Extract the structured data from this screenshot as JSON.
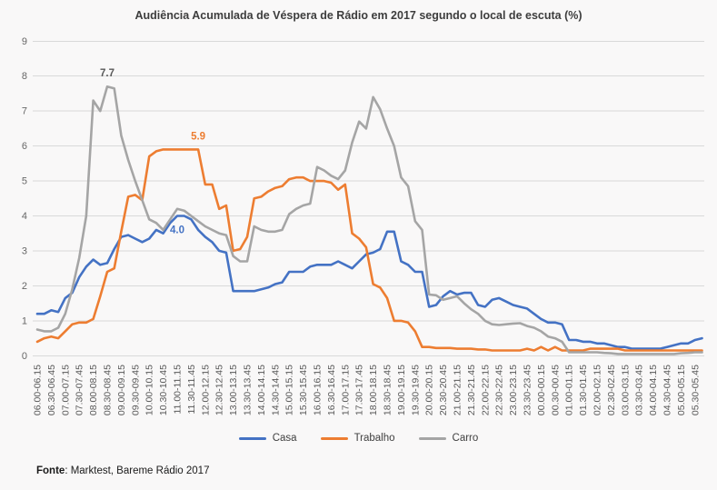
{
  "title": "Audiência Acumulada de Véspera de Rádio em 2017 segundo o local de escuta (%)",
  "chart_data": {
    "type": "line",
    "title": "Audiência Acumulada de Véspera de Rádio em 2017 segundo o local de escuta (%)",
    "ylim": [
      0,
      9
    ],
    "y_ticks": [
      0,
      1,
      2,
      3,
      4,
      5,
      6,
      7,
      8,
      9
    ],
    "grid": true,
    "legend_position": "bottom",
    "x_label_rotation": 90,
    "points_per_label": 2,
    "categories": [
      "06.00-06.15",
      "06.30-06.45",
      "07.00-07.15",
      "07.30-07.45",
      "08.00-08.15",
      "08.30-08.45",
      "09.00-09.15",
      "09.30-09.45",
      "10.00-10.15",
      "10.30-10.45",
      "11.00-11.15",
      "11.30-11.45",
      "12.00-12.15",
      "12.30-12.45",
      "13.00-13.15",
      "13.30-13.45",
      "14.00-14.15",
      "14.30-14.45",
      "15.00-15.15",
      "15.30-15.45",
      "16.00-16.15",
      "16.30-16.45",
      "17.00-17.15",
      "17.30-17.45",
      "18.00-18.15",
      "18.30-18.45",
      "19.00-19.15",
      "19.30-19.45",
      "20.00-20.15",
      "20.30-20.45",
      "21.00-21.15",
      "21.30-21.45",
      "22.00-22.15",
      "22.30-22.45",
      "23.00-23.15",
      "23.30-23.45",
      "00.00-00.15",
      "00.30-00.45",
      "01.00-01.15",
      "01.30-01.45",
      "02.00-02.15",
      "02.30-02.45",
      "03.00-03.15",
      "03.30-03.45",
      "04.00-04.15",
      "04.30-04.45",
      "05.00-05.15",
      "05.30-05.45"
    ],
    "series": [
      {
        "name": "Casa",
        "color": "#4472C4",
        "values": [
          1.2,
          1.2,
          1.3,
          1.25,
          1.65,
          1.8,
          2.25,
          2.55,
          2.75,
          2.6,
          2.65,
          3.05,
          3.4,
          3.45,
          3.35,
          3.25,
          3.35,
          3.6,
          3.5,
          3.8,
          4.0,
          4.0,
          3.9,
          3.6,
          3.4,
          3.25,
          3.0,
          2.95,
          1.85,
          1.85,
          1.85,
          1.85,
          1.9,
          1.95,
          2.05,
          2.1,
          2.4,
          2.4,
          2.4,
          2.55,
          2.6,
          2.6,
          2.6,
          2.7,
          2.6,
          2.5,
          2.7,
          2.9,
          2.95,
          3.05,
          3.55,
          3.55,
          2.7,
          2.6,
          2.4,
          2.4,
          1.4,
          1.45,
          1.7,
          1.85,
          1.75,
          1.8,
          1.8,
          1.45,
          1.4,
          1.6,
          1.65,
          1.55,
          1.45,
          1.4,
          1.35,
          1.2,
          1.05,
          0.95,
          0.95,
          0.9,
          0.45,
          0.45,
          0.4,
          0.4,
          0.35,
          0.35,
          0.3,
          0.25,
          0.25,
          0.2,
          0.2,
          0.2,
          0.2,
          0.2,
          0.25,
          0.3,
          0.35,
          0.35,
          0.45,
          0.5
        ]
      },
      {
        "name": "Trabalho",
        "color": "#ED7D31",
        "values": [
          0.4,
          0.5,
          0.55,
          0.5,
          0.7,
          0.9,
          0.95,
          0.95,
          1.05,
          1.7,
          2.4,
          2.5,
          3.55,
          4.55,
          4.6,
          4.45,
          5.7,
          5.85,
          5.9,
          5.9,
          5.9,
          5.9,
          5.9,
          5.9,
          4.9,
          4.9,
          4.2,
          4.3,
          3.0,
          3.05,
          3.4,
          4.5,
          4.55,
          4.7,
          4.8,
          4.85,
          5.05,
          5.1,
          5.1,
          5.0,
          5.0,
          5.0,
          4.95,
          4.75,
          4.9,
          3.5,
          3.35,
          3.1,
          2.05,
          1.95,
          1.65,
          1.0,
          1.0,
          0.95,
          0.7,
          0.25,
          0.25,
          0.22,
          0.22,
          0.22,
          0.2,
          0.2,
          0.2,
          0.18,
          0.18,
          0.15,
          0.15,
          0.15,
          0.15,
          0.15,
          0.2,
          0.15,
          0.25,
          0.15,
          0.25,
          0.15,
          0.15,
          0.15,
          0.15,
          0.2,
          0.2,
          0.2,
          0.2,
          0.2,
          0.15,
          0.15,
          0.15,
          0.15,
          0.15,
          0.15,
          0.15,
          0.15,
          0.15,
          0.15,
          0.15,
          0.15
        ]
      },
      {
        "name": "Carro",
        "color": "#A5A5A5",
        "values": [
          0.75,
          0.7,
          0.7,
          0.8,
          1.2,
          1.9,
          2.8,
          4.0,
          7.3,
          7.0,
          7.7,
          7.65,
          6.3,
          5.6,
          5.0,
          4.45,
          3.9,
          3.8,
          3.6,
          3.9,
          4.2,
          4.15,
          4.0,
          3.85,
          3.7,
          3.6,
          3.5,
          3.45,
          2.85,
          2.7,
          2.7,
          3.7,
          3.6,
          3.55,
          3.55,
          3.6,
          4.05,
          4.2,
          4.3,
          4.35,
          5.4,
          5.3,
          5.15,
          5.05,
          5.3,
          6.1,
          6.7,
          6.5,
          7.4,
          7.05,
          6.5,
          6.0,
          5.1,
          4.85,
          3.85,
          3.6,
          1.75,
          1.73,
          1.6,
          1.65,
          1.7,
          1.5,
          1.33,
          1.2,
          1.0,
          0.9,
          0.88,
          0.9,
          0.92,
          0.93,
          0.85,
          0.8,
          0.7,
          0.55,
          0.5,
          0.4,
          0.1,
          0.1,
          0.1,
          0.1,
          0.1,
          0.08,
          0.07,
          0.05,
          0.05,
          0.05,
          0.05,
          0.05,
          0.05,
          0.05,
          0.05,
          0.05,
          0.07,
          0.08,
          0.1,
          0.1
        ]
      }
    ],
    "annotations": [
      {
        "text": "7.7",
        "series": "Carro",
        "point_index": 10,
        "position": "above",
        "color": "#595959"
      },
      {
        "text": "5.9",
        "series": "Trabalho",
        "point_index": 23,
        "position": "above",
        "color": "#ED7D31"
      },
      {
        "text": "4.0",
        "series": "Casa",
        "point_index": 20,
        "position": "below",
        "color": "#4472C4"
      }
    ]
  },
  "legend": {
    "items": [
      {
        "label": "Casa",
        "color": "#4472C4"
      },
      {
        "label": "Trabalho",
        "color": "#ED7D31"
      },
      {
        "label": "Carro",
        "color": "#A5A5A5"
      }
    ]
  },
  "footer": {
    "label": "Fonte",
    "text": ": Marktest, Bareme Rádio 2017"
  },
  "colors": {
    "background": "#f9f8f8",
    "grid": "#d9d9d9",
    "axis_text": "#666666",
    "x_axis_text": "#595959",
    "title_text": "#3d3d3d"
  }
}
